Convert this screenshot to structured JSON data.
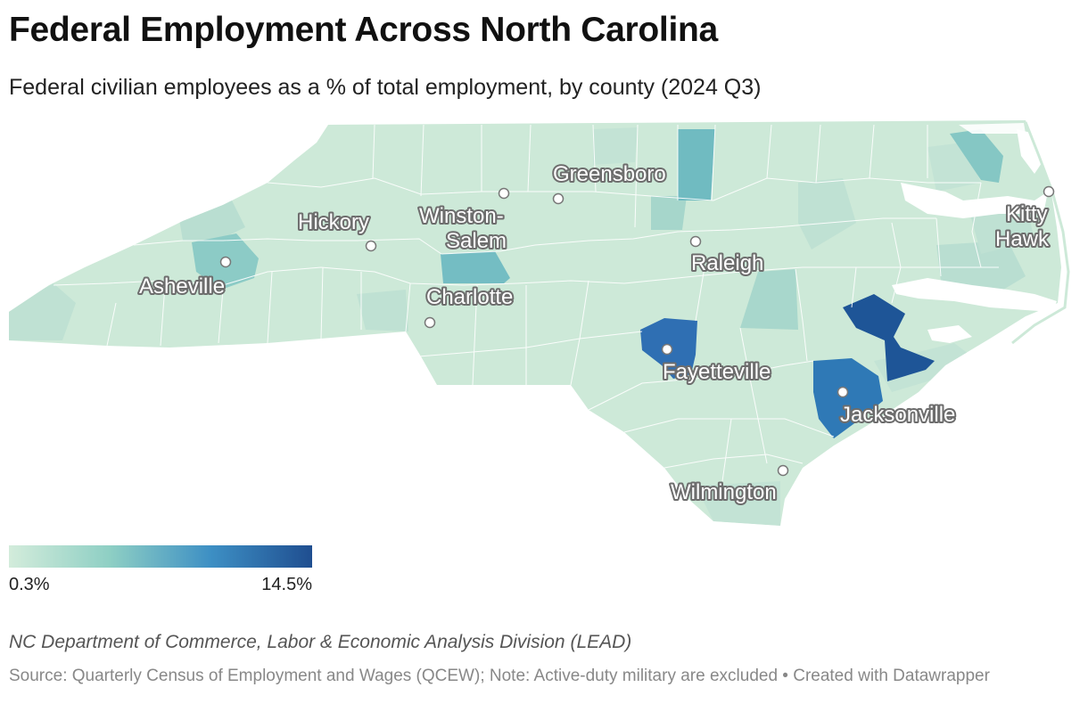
{
  "header": {
    "title": "Federal Employment Across North Carolina",
    "subtitle": "Federal civilian employees as a % of total employment, by county (2024 Q3)"
  },
  "legend": {
    "min_label": "0.3%",
    "max_label": "14.5%",
    "min_value": 0.3,
    "max_value": 14.5,
    "colors": [
      "#d3ecdb",
      "#8ecfc4",
      "#3d8fc4",
      "#1f4e90"
    ]
  },
  "colors": {
    "base": "#cde9d8",
    "low": "#b9ded1",
    "medium": "#7ec3c6",
    "high": "#2f79b6",
    "highest": "#1e5597",
    "county_border": "#ffffff",
    "water": "#ffffff"
  },
  "cities": [
    {
      "name": "Greensboro",
      "label": "Greensboro"
    },
    {
      "name": "Winston-Salem",
      "label_line1": "Winston-",
      "label_line2": "Salem"
    },
    {
      "name": "Hickory",
      "label": "Hickory"
    },
    {
      "name": "Asheville",
      "label": "Asheville"
    },
    {
      "name": "Raleigh",
      "label": "Raleigh"
    },
    {
      "name": "Charlotte",
      "label": "Charlotte"
    },
    {
      "name": "Fayetteville",
      "label": "Fayetteville"
    },
    {
      "name": "Jacksonville",
      "label": "Jacksonville"
    },
    {
      "name": "Wilmington",
      "label": "Wilmington"
    },
    {
      "name": "Kitty Hawk",
      "label_line1": "Kitty",
      "label_line2": "Hawk"
    }
  ],
  "footer": {
    "org": "NC Department of Commerce, Labor & Economic Analysis Division (LEAD)",
    "source": "Source: Quarterly Census of Employment and Wages (QCEW); Note: Active-duty military are excluded • Created with Datawrapper"
  }
}
